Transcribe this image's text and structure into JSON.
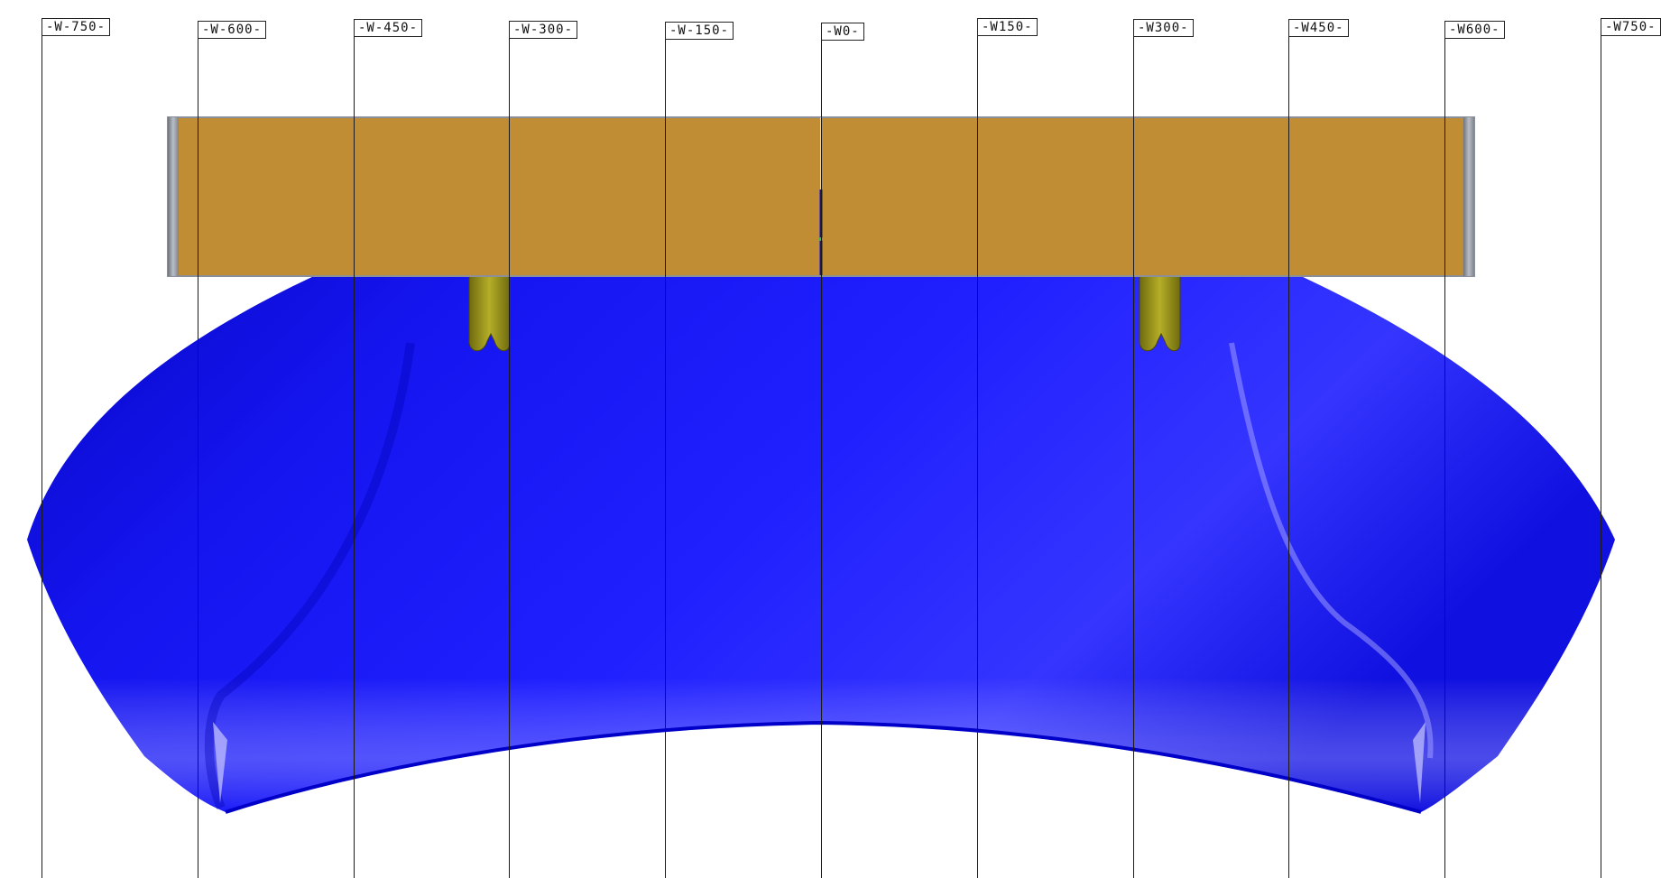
{
  "drawing": {
    "stations": [
      {
        "label": "-W-750-"
      },
      {
        "label": "-W-600-"
      },
      {
        "label": "-W-450-"
      },
      {
        "label": "-W-300-"
      },
      {
        "label": "-W-150-"
      },
      {
        "label": "-W0-"
      },
      {
        "label": "-W150-"
      },
      {
        "label": "-W300-"
      },
      {
        "label": "-W450-"
      },
      {
        "label": "-W600-"
      },
      {
        "label": "-W750-"
      }
    ],
    "colors": {
      "panel_surface": "#2222ff",
      "panel_dark": "#0a0ad8",
      "fixture_plate": "#c08d35",
      "fixture_edge": "#8a8f99",
      "clamp": "#8f8a14",
      "grid_line": "#1a1a1a"
    }
  }
}
